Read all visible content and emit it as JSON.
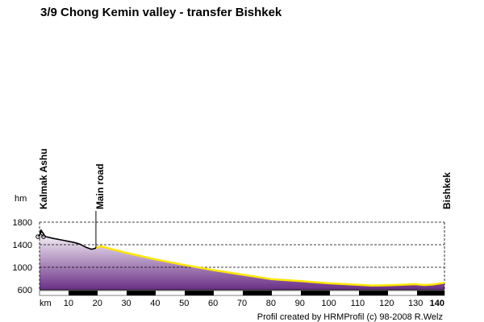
{
  "chart_data": {
    "type": "area",
    "title": "3/9 Chong Kemin valley - transfer Bishkek",
    "ylabel": "hm",
    "xlabel": "km",
    "xlim": [
      0,
      140
    ],
    "ylim": [
      600,
      1800
    ],
    "y_ticks": [
      600,
      1000,
      1400,
      1800
    ],
    "x_ticks": [
      10,
      20,
      30,
      40,
      50,
      60,
      70,
      80,
      90,
      100,
      110,
      120,
      130,
      140
    ],
    "grid": true,
    "colors": {
      "fill_top": "#ffffff",
      "fill_bottom": "#6a2f86",
      "offroad_line": "#000000",
      "road_line": "#ffe600"
    },
    "series": [
      {
        "name": "",
        "x": [
          0,
          0.5,
          2,
          5,
          8,
          10,
          12,
          14,
          16,
          18,
          19.5,
          21,
          25,
          30,
          40,
          50,
          60,
          70,
          80,
          90,
          100,
          110,
          115,
          120,
          125,
          130,
          133,
          136,
          140
        ],
        "y": [
          1560,
          1660,
          1545,
          1510,
          1480,
          1460,
          1440,
          1410,
          1355,
          1320,
          1340,
          1375,
          1320,
          1255,
          1140,
          1040,
          950,
          870,
          790,
          755,
          715,
          690,
          675,
          680,
          690,
          700,
          685,
          695,
          725
        ]
      }
    ],
    "waypoints": [
      {
        "label": "Kalmak Ashu",
        "km": 0
      },
      {
        "label": "Main road",
        "km": 19.5
      },
      {
        "label": "Bishkek",
        "km": 140
      }
    ],
    "credit": "Profil created by HRMProfil (c) 98-2008 R.Welz"
  }
}
